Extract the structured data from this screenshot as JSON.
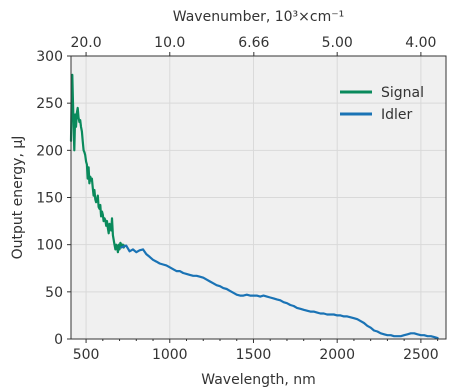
{
  "chart_data": {
    "type": "line",
    "xlabel": "Wavelength, nm",
    "ylabel": "Output energy, μJ",
    "top_axis_label": "Wavenumber, 10³×cm⁻¹",
    "xlim": [
      410,
      2650
    ],
    "ylim": [
      0,
      300
    ],
    "x_ticks": [
      500,
      1000,
      1500,
      2000,
      2500
    ],
    "x_tick_labels": [
      "500",
      "1000",
      "1500",
      "2000",
      "2500"
    ],
    "y_ticks": [
      0,
      50,
      100,
      150,
      200,
      250,
      300
    ],
    "y_tick_labels": [
      "0",
      "50",
      "100",
      "150",
      "200",
      "250",
      "300"
    ],
    "top_ticks": [
      {
        "x": 500,
        "label": "20.0"
      },
      {
        "x": 1000,
        "label": "10.0"
      },
      {
        "x": 1502,
        "label": "6.66"
      },
      {
        "x": 2000,
        "label": "5.00"
      },
      {
        "x": 2500,
        "label": "4.00"
      }
    ],
    "grid": true,
    "legend_position": "top-right",
    "series": [
      {
        "name": "Signal",
        "color": "#0a8a5c",
        "x": [
          410,
          415,
          418,
          422,
          425,
          430,
          435,
          440,
          445,
          450,
          455,
          460,
          465,
          470,
          475,
          480,
          485,
          490,
          495,
          500,
          505,
          510,
          515,
          520,
          525,
          530,
          535,
          540,
          545,
          550,
          555,
          560,
          565,
          570,
          575,
          580,
          585,
          590,
          595,
          600,
          605,
          610,
          615,
          620,
          625,
          630,
          635,
          640,
          645,
          650,
          655,
          660,
          665,
          670,
          675,
          680,
          685,
          690,
          695,
          700,
          705,
          710,
          715,
          720,
          725,
          730
        ],
        "y": [
          210,
          270,
          280,
          250,
          230,
          200,
          238,
          225,
          240,
          245,
          235,
          230,
          232,
          225,
          220,
          210,
          200,
          198,
          195,
          188,
          185,
          170,
          182,
          165,
          172,
          168,
          170,
          160,
          152,
          158,
          148,
          145,
          147,
          152,
          140,
          138,
          142,
          130,
          135,
          132,
          125,
          128,
          126,
          120,
          125,
          118,
          112,
          122,
          118,
          115,
          128,
          110,
          105,
          100,
          95,
          100,
          98,
          92,
          100,
          95,
          102,
          100,
          98,
          100,
          97,
          99
        ]
      },
      {
        "name": "Idler",
        "color": "#1a73b5",
        "x": [
          710,
          740,
          760,
          780,
          800,
          820,
          840,
          860,
          880,
          900,
          920,
          940,
          960,
          980,
          1000,
          1020,
          1040,
          1060,
          1080,
          1100,
          1120,
          1140,
          1160,
          1180,
          1200,
          1220,
          1240,
          1260,
          1280,
          1300,
          1320,
          1340,
          1360,
          1380,
          1400,
          1420,
          1440,
          1460,
          1480,
          1500,
          1520,
          1540,
          1560,
          1580,
          1600,
          1620,
          1640,
          1660,
          1680,
          1700,
          1720,
          1740,
          1760,
          1780,
          1800,
          1820,
          1840,
          1860,
          1880,
          1900,
          1920,
          1940,
          1960,
          1980,
          2000,
          2020,
          2040,
          2060,
          2080,
          2100,
          2120,
          2140,
          2160,
          2180,
          2200,
          2220,
          2240,
          2260,
          2280,
          2300,
          2320,
          2340,
          2360,
          2380,
          2400,
          2420,
          2440,
          2460,
          2480,
          2500,
          2520,
          2540,
          2560,
          2580,
          2600
        ],
        "y": [
          97,
          99,
          93,
          95,
          92,
          94,
          95,
          90,
          87,
          84,
          82,
          80,
          79,
          78,
          76,
          74,
          72,
          72,
          70,
          69,
          68,
          67,
          67,
          66,
          65,
          63,
          61,
          59,
          57,
          56,
          54,
          53,
          51,
          49,
          47,
          46,
          46,
          47,
          46,
          46,
          46,
          45,
          46,
          45,
          44,
          43,
          42,
          41,
          39,
          38,
          36,
          35,
          33,
          32,
          31,
          30,
          29,
          29,
          28,
          27,
          27,
          26,
          26,
          26,
          25,
          25,
          24,
          24,
          23,
          22,
          21,
          19,
          17,
          14,
          12,
          9,
          8,
          6,
          5,
          4,
          4,
          3,
          3,
          3,
          4,
          5,
          6,
          6,
          5,
          4,
          4,
          3,
          3,
          2,
          1
        ]
      }
    ]
  }
}
